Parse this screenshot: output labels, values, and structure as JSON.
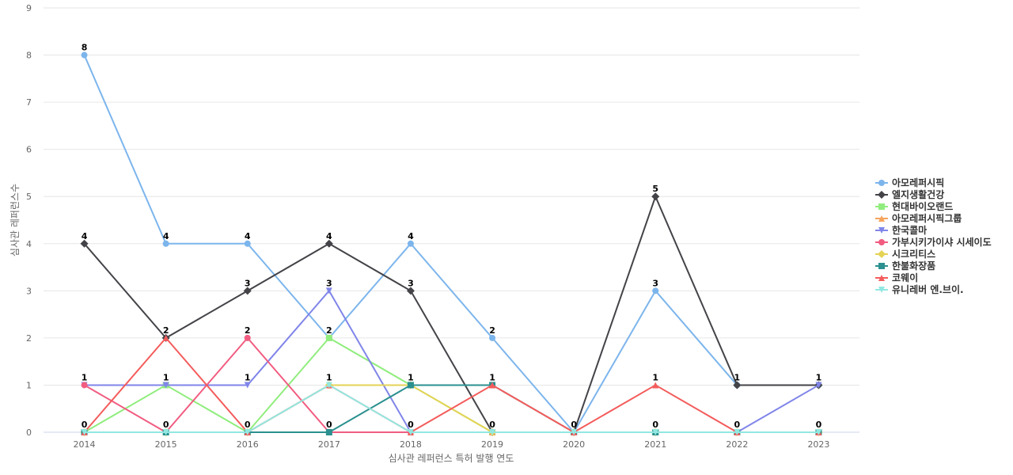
{
  "chart_data": {
    "type": "line",
    "title": "",
    "xlabel": "심사관 레퍼런스 특허 발행 연도",
    "ylabel": "심사관 레퍼런스수",
    "ylim": [
      0,
      9
    ],
    "grid": true,
    "legend_position": "right",
    "categories": [
      "2014",
      "2015",
      "2016",
      "2017",
      "2018",
      "2019",
      "2020",
      "2021",
      "2022",
      "2023"
    ],
    "y_ticks": [
      "0",
      "1",
      "2",
      "3",
      "4",
      "5",
      "6",
      "7",
      "8",
      "9"
    ],
    "series": [
      {
        "name": "아모레퍼시픽",
        "color": "#7cb5ec",
        "marker": "circle",
        "values": [
          8,
          4,
          4,
          2,
          4,
          2,
          0,
          3,
          1,
          1
        ]
      },
      {
        "name": "엘지생활건강",
        "color": "#434348",
        "marker": "diamond",
        "values": [
          4,
          2,
          3,
          4,
          3,
          0,
          0,
          5,
          1,
          1
        ]
      },
      {
        "name": "현대바이오랜드",
        "color": "#90ed7d",
        "marker": "square",
        "values": [
          0,
          1,
          0,
          2,
          1,
          0,
          0,
          0,
          0,
          0
        ]
      },
      {
        "name": "아모레퍼시픽그룹",
        "color": "#f7a35c",
        "marker": "triangle",
        "values": [
          0,
          0,
          0,
          0,
          0,
          0,
          0,
          0,
          0,
          0
        ]
      },
      {
        "name": "한국콜마",
        "color": "#8085e9",
        "marker": "triangle-down",
        "values": [
          1,
          1,
          1,
          3,
          0,
          0,
          0,
          0,
          0,
          1
        ]
      },
      {
        "name": "가부시키가이샤 시세이도",
        "color": "#f15c80",
        "marker": "circle",
        "values": [
          1,
          0,
          2,
          0,
          0,
          0,
          0,
          0,
          0,
          0
        ]
      },
      {
        "name": "시크리티스",
        "color": "#e4d354",
        "marker": "diamond",
        "values": [
          0,
          0,
          0,
          1,
          1,
          0,
          0,
          0,
          0,
          0
        ]
      },
      {
        "name": "한불화장품",
        "color": "#2b908f",
        "marker": "square",
        "values": [
          0,
          0,
          0,
          0,
          1,
          1,
          0,
          0,
          0,
          0
        ]
      },
      {
        "name": "코웨이",
        "color": "#f45b5b",
        "marker": "triangle",
        "values": [
          0,
          2,
          0,
          1,
          0,
          1,
          0,
          1,
          0,
          0
        ]
      },
      {
        "name": "유니레버 엔.브이.",
        "color": "#91e8e1",
        "marker": "triangle-down",
        "values": [
          0,
          0,
          0,
          1,
          0,
          0,
          0,
          0,
          0,
          0
        ]
      }
    ],
    "data_labels": [
      {
        "category": "2014",
        "values": [
          "8",
          "4",
          "1",
          "0"
        ]
      },
      {
        "category": "2015",
        "values": [
          "4",
          "2",
          "1",
          "0"
        ]
      },
      {
        "category": "2016",
        "values": [
          "4",
          "3",
          "2",
          "1",
          "0"
        ]
      },
      {
        "category": "2017",
        "values": [
          "4",
          "3",
          "2",
          "1",
          "0"
        ]
      },
      {
        "category": "2018",
        "values": [
          "4",
          "3",
          "1",
          "0"
        ]
      },
      {
        "category": "2019",
        "values": [
          "2",
          "1",
          "0"
        ]
      },
      {
        "category": "2020",
        "values": [
          "0"
        ]
      },
      {
        "category": "2021",
        "values": [
          "5",
          "3",
          "1",
          "0"
        ]
      },
      {
        "category": "2022",
        "values": [
          "1",
          "0"
        ]
      },
      {
        "category": "2023",
        "values": [
          "1",
          "0"
        ]
      }
    ]
  }
}
